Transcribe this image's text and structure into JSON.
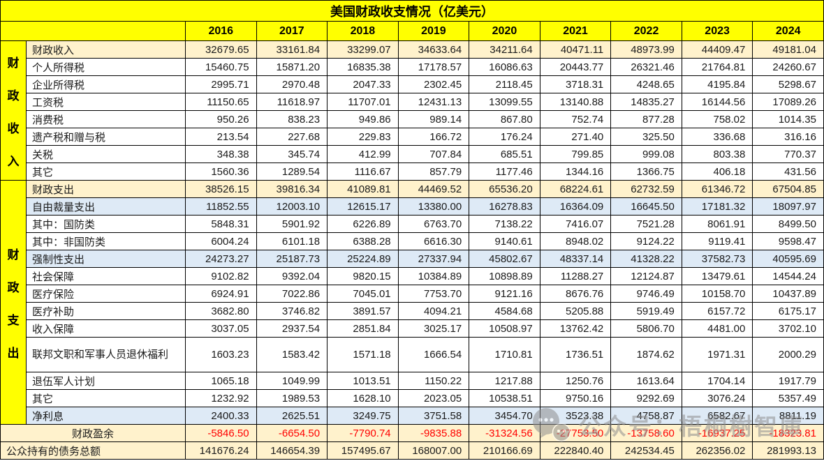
{
  "title": "美国财政收支情况（亿美元）",
  "unit_note": "亿美元",
  "columns": [
    "2016",
    "2017",
    "2018",
    "2019",
    "2020",
    "2021",
    "2022",
    "2023",
    "2024"
  ],
  "groups": [
    {
      "id": "revenue",
      "label": "财政收入",
      "start": 0,
      "span": 8
    },
    {
      "id": "spending",
      "label": "财政支出",
      "start": 8,
      "span": 13
    }
  ],
  "rows": [
    {
      "label": "财政收入",
      "style": "beige",
      "values": [
        "32679.65",
        "33161.84",
        "33299.07",
        "34633.64",
        "34211.64",
        "40471.11",
        "48973.99",
        "44409.47",
        "49181.04"
      ]
    },
    {
      "label": "个人所得税",
      "style": "",
      "values": [
        "15460.75",
        "15871.20",
        "16835.38",
        "17178.57",
        "16086.63",
        "20443.77",
        "26321.46",
        "21764.81",
        "24260.67"
      ]
    },
    {
      "label": "企业所得税",
      "style": "",
      "values": [
        "2995.71",
        "2970.48",
        "2047.33",
        "2302.45",
        "2118.45",
        "3718.31",
        "4248.65",
        "4195.84",
        "5298.67"
      ]
    },
    {
      "label": "工资税",
      "style": "",
      "values": [
        "11150.65",
        "11618.97",
        "11707.01",
        "12431.13",
        "13099.55",
        "13140.88",
        "14835.27",
        "16144.56",
        "17089.26"
      ]
    },
    {
      "label": "消费税",
      "style": "",
      "values": [
        "950.26",
        "838.23",
        "949.86",
        "989.14",
        "867.80",
        "752.74",
        "877.28",
        "758.02",
        "1014.35"
      ]
    },
    {
      "label": "遗产税和赠与税",
      "style": "",
      "values": [
        "213.54",
        "227.68",
        "229.83",
        "166.72",
        "176.24",
        "271.40",
        "325.50",
        "336.68",
        "316.16"
      ]
    },
    {
      "label": "关税",
      "style": "",
      "values": [
        "348.38",
        "345.74",
        "412.99",
        "707.84",
        "685.51",
        "799.85",
        "999.08",
        "803.38",
        "770.37"
      ]
    },
    {
      "label": "其它",
      "style": "",
      "values": [
        "1560.36",
        "1289.54",
        "1116.67",
        "857.79",
        "1177.46",
        "1344.16",
        "1366.75",
        "406.18",
        "431.56"
      ]
    },
    {
      "label": "财政支出",
      "style": "beige",
      "values": [
        "38526.15",
        "39816.34",
        "41089.81",
        "44469.52",
        "65536.20",
        "68224.61",
        "62732.59",
        "61346.72",
        "67504.85"
      ]
    },
    {
      "label": "自由裁量支出",
      "style": "blue",
      "values": [
        "11852.55",
        "12003.10",
        "12615.17",
        "13380.00",
        "16278.83",
        "16364.09",
        "16645.50",
        "17181.32",
        "18097.97"
      ]
    },
    {
      "label": "其中：国防类",
      "style": "",
      "values": [
        "5848.31",
        "5901.92",
        "6226.89",
        "6763.70",
        "7138.22",
        "7416.07",
        "7521.28",
        "8061.91",
        "8499.50"
      ]
    },
    {
      "label": "其中：非国防类",
      "style": "",
      "values": [
        "6004.24",
        "6101.18",
        "6388.28",
        "6616.30",
        "9140.61",
        "8948.02",
        "9124.22",
        "9119.41",
        "9598.47"
      ]
    },
    {
      "label": "强制性支出",
      "style": "blue",
      "values": [
        "24273.27",
        "25187.73",
        "25224.89",
        "27337.94",
        "45802.67",
        "48337.14",
        "41328.22",
        "37582.73",
        "40595.69"
      ]
    },
    {
      "label": "社会保障",
      "style": "",
      "values": [
        "9102.82",
        "9392.04",
        "9820.15",
        "10384.89",
        "10898.89",
        "11288.27",
        "12124.87",
        "13479.61",
        "14544.24"
      ]
    },
    {
      "label": "医疗保险",
      "style": "",
      "values": [
        "6924.91",
        "7022.86",
        "7045.01",
        "7753.70",
        "9121.16",
        "8676.76",
        "9746.49",
        "10158.70",
        "10437.89"
      ]
    },
    {
      "label": "医疗补助",
      "style": "",
      "values": [
        "3682.80",
        "3746.82",
        "3891.57",
        "4094.21",
        "4584.68",
        "5205.88",
        "5919.49",
        "6157.72",
        "6175.17"
      ]
    },
    {
      "label": "收入保障",
      "style": "",
      "values": [
        "3037.05",
        "2937.54",
        "2851.84",
        "3025.17",
        "10508.97",
        "13762.42",
        "5806.70",
        "4481.00",
        "3702.10"
      ]
    },
    {
      "label": "联邦文职和军事人员退休福利",
      "style": "",
      "tall": true,
      "values": [
        "1603.23",
        "1583.42",
        "1571.18",
        "1666.54",
        "1710.81",
        "1736.51",
        "1874.62",
        "1971.31",
        "2000.29"
      ]
    },
    {
      "label": "退伍军人计划",
      "style": "",
      "values": [
        "1065.18",
        "1049.99",
        "1013.51",
        "1150.22",
        "1217.88",
        "1250.76",
        "1613.64",
        "1704.14",
        "1917.79"
      ]
    },
    {
      "label": "其它",
      "style": "",
      "values": [
        "1232.92",
        "1989.53",
        "1628.10",
        "2023.05",
        "10538.51",
        "9750.16",
        "9292.69",
        "3076.24",
        "5357.49"
      ]
    },
    {
      "label": "净利息",
      "style": "blue",
      "values": [
        "2400.33",
        "2625.51",
        "3249.75",
        "3751.58",
        "3454.70",
        "3523.38",
        "4758.87",
        "6582.67",
        "8811.19"
      ]
    },
    {
      "label": "财政盈余",
      "style": "beige",
      "merged": true,
      "labelAlign": "center",
      "red": true,
      "values": [
        "-5846.50",
        "-6654.50",
        "-7790.74",
        "-9835.88",
        "-31324.56",
        "-27753.50",
        "-13758.60",
        "-16937.25",
        "-18323.81"
      ]
    },
    {
      "label": "公众持有的债务总额",
      "style": "beige",
      "merged": true,
      "values": [
        "141676.24",
        "146654.39",
        "157495.67",
        "168007.00",
        "210166.69",
        "222840.40",
        "242534.45",
        "262356.02",
        "281993.13"
      ]
    }
  ],
  "watermark": {
    "icon": "wechat-icon",
    "text": "公众号：梧桐樹智庫"
  },
  "colors": {
    "header_yellow": "#ffff00",
    "total_beige": "#fff2cc",
    "subtotal_blue": "#deeaf6",
    "negative_red": "#ff0000",
    "border_black": "#000000",
    "watermark_gray": "#8f8f8f"
  }
}
